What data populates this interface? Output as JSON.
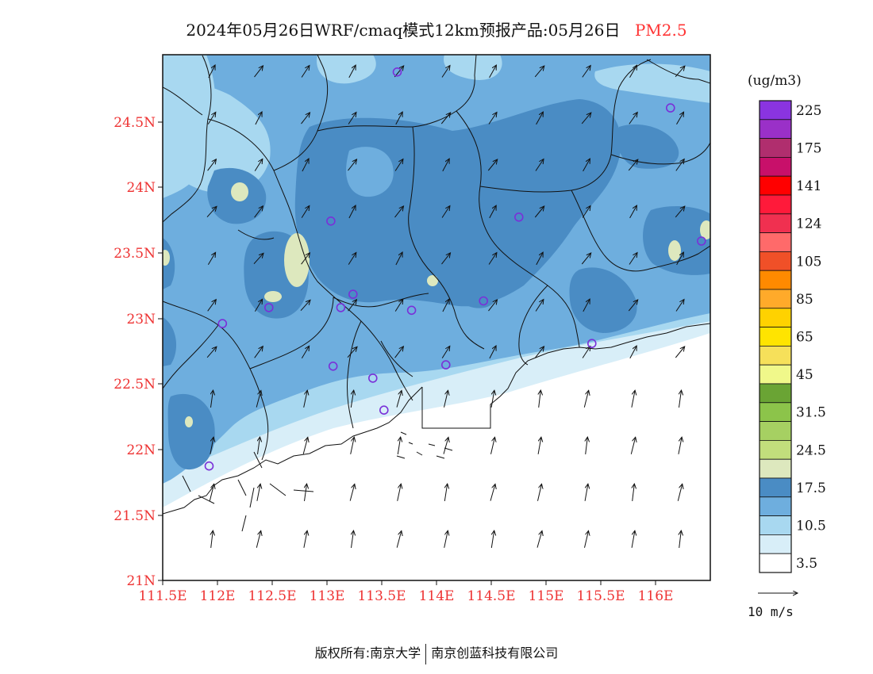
{
  "title": {
    "main": "2024年05月26日WRF/cmaq模式12km预报产品:05月26日",
    "variable": "PM2.5"
  },
  "map": {
    "lat_labels": [
      "24.5N",
      "24N",
      "23.5N",
      "23N",
      "22.5N",
      "22N",
      "21.5N",
      "21N"
    ],
    "lon_labels": [
      "111.5E",
      "112E",
      "112.5E",
      "113E",
      "113.5E",
      "114E",
      "114.5E",
      "115E",
      "115.5E",
      "116E"
    ],
    "lat_range": [
      21,
      24.95
    ],
    "lon_range": [
      111.5,
      116.45
    ],
    "label_color": "#ee3333",
    "wind_vectors": "north-northeast",
    "station_marker": "purple-circle"
  },
  "legend": {
    "unit": "(ug/m3)",
    "bins": [
      {
        "color": "#ffffff",
        "label": "3.5"
      },
      {
        "color": "#d8eef8",
        "label": ""
      },
      {
        "color": "#a8d8f0",
        "label": "10.5"
      },
      {
        "color": "#6eaede",
        "label": ""
      },
      {
        "color": "#4a8cc4",
        "label": "17.5"
      },
      {
        "color": "#dde8be",
        "label": ""
      },
      {
        "color": "#c2de7c",
        "label": "24.5"
      },
      {
        "color": "#a6d062",
        "label": ""
      },
      {
        "color": "#8cc44a",
        "label": "31.5"
      },
      {
        "color": "#6aa434",
        "label": ""
      },
      {
        "color": "#f0f88a",
        "label": "45"
      },
      {
        "color": "#f6e05a",
        "label": ""
      },
      {
        "color": "#ffe400",
        "label": "65"
      },
      {
        "color": "#ffd200",
        "label": ""
      },
      {
        "color": "#ffaa2a",
        "label": "85"
      },
      {
        "color": "#ff8a00",
        "label": ""
      },
      {
        "color": "#f05028",
        "label": "105"
      },
      {
        "color": "#ff6a6a",
        "label": ""
      },
      {
        "color": "#f03050",
        "label": "124"
      },
      {
        "color": "#ff1a3a",
        "label": ""
      },
      {
        "color": "#ff0000",
        "label": "141"
      },
      {
        "color": "#c8106a",
        "label": ""
      },
      {
        "color": "#b02e6e",
        "label": "175"
      },
      {
        "color": "#9a30c8",
        "label": ""
      },
      {
        "color": "#8a34e0",
        "label": "225"
      }
    ]
  },
  "wind_reference": {
    "label": "10 m/s"
  },
  "footer": {
    "left": "版权所有:南京大学",
    "right": "南京创蓝科技有限公司"
  }
}
